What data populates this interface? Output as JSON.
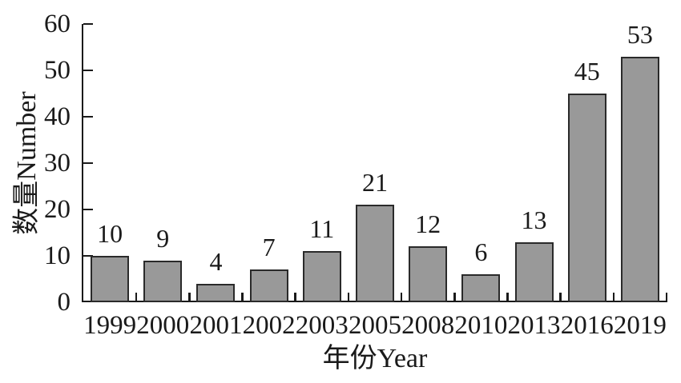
{
  "chart_data": {
    "type": "bar",
    "title": "",
    "xlabel": "年份Year",
    "ylabel": "数量Number",
    "categories": [
      "1999",
      "2000",
      "2001",
      "2002",
      "2003",
      "2005",
      "2008",
      "2010",
      "2013",
      "2016",
      "2019"
    ],
    "values": [
      10,
      9,
      4,
      7,
      11,
      21,
      12,
      6,
      13,
      45,
      53
    ],
    "bar_value_labels": [
      "10",
      "9",
      "4",
      "7",
      "11",
      "21",
      "12",
      "6",
      "13",
      "45",
      "53"
    ],
    "y_tick_labels": [
      "0",
      "10",
      "20",
      "30",
      "40",
      "50",
      "60"
    ],
    "ylim": [
      0,
      60
    ],
    "ytick_step": 10,
    "grid": false,
    "legend": "none",
    "colors": {
      "bar_fill": "#999999",
      "bar_border": "#2a2a2a",
      "axis": "#1a1a1a",
      "text": "#1a1a1a",
      "background": "#ffffff"
    }
  }
}
